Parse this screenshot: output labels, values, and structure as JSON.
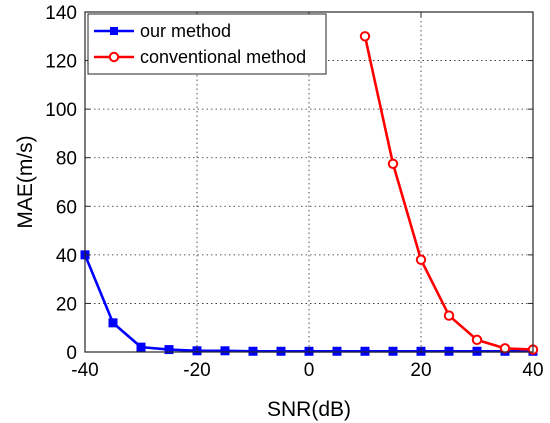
{
  "chart_data": {
    "type": "line",
    "title": "",
    "xlabel": "SNR(dB)",
    "ylabel": "MAE(m/s)",
    "xlim": [
      -40,
      40
    ],
    "ylim": [
      0,
      140
    ],
    "xticks": [
      "-40",
      "-20",
      "0",
      "20",
      "40"
    ],
    "yticks": [
      "0",
      "20",
      "40",
      "60",
      "80",
      "100",
      "120",
      "140"
    ],
    "grid": true,
    "legend_position": "top-left",
    "series": [
      {
        "name": "our method",
        "color": "#0000ff",
        "marker": "square",
        "x": [
          -40,
          -35,
          -30,
          -25,
          -20,
          -15,
          -10,
          -5,
          0,
          5,
          10,
          15,
          20,
          25,
          30,
          35,
          40
        ],
        "y": [
          40,
          12,
          2,
          1,
          0.5,
          0.5,
          0.3,
          0.3,
          0.3,
          0.3,
          0.3,
          0.3,
          0.3,
          0.3,
          0.3,
          0.3,
          0.3
        ]
      },
      {
        "name": "conventional method",
        "color": "#ff0000",
        "marker": "circle",
        "x": [
          10,
          15,
          20,
          25,
          30,
          35,
          40
        ],
        "y": [
          130,
          77.5,
          38,
          15,
          5,
          1.5,
          1
        ]
      }
    ]
  }
}
